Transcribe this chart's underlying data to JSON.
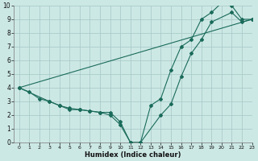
{
  "xlabel": "Humidex (Indice chaleur)",
  "bg_color": "#cce8e5",
  "grid_color": "#aaccca",
  "line_color": "#1a6b5a",
  "xlim": [
    -0.5,
    23
  ],
  "ylim": [
    0,
    10
  ],
  "xticks": [
    0,
    1,
    2,
    3,
    4,
    5,
    6,
    7,
    8,
    9,
    10,
    11,
    12,
    13,
    14,
    15,
    16,
    17,
    18,
    19,
    20,
    21,
    22,
    23
  ],
  "yticks": [
    0,
    1,
    2,
    3,
    4,
    5,
    6,
    7,
    8,
    9,
    10
  ],
  "line1_x": [
    0,
    1,
    2,
    3,
    4,
    5,
    6,
    7,
    8,
    9,
    10,
    11,
    12,
    13,
    14,
    15,
    16,
    17,
    18,
    19,
    20,
    21,
    22,
    23
  ],
  "line1_y": [
    4,
    3.7,
    3.2,
    3.0,
    2.7,
    2.5,
    2.4,
    2.3,
    2.2,
    2.2,
    1.5,
    0.0,
    0.0,
    2.7,
    3.2,
    5.3,
    7.0,
    7.5,
    9.0,
    9.5,
    10.2,
    10.0,
    9.0,
    9.0
  ],
  "line2_x": [
    0,
    3,
    4,
    5,
    6,
    7,
    8,
    9,
    10,
    11,
    12,
    14,
    15,
    16,
    17,
    18,
    19,
    21,
    22,
    23
  ],
  "line2_y": [
    4,
    3.0,
    2.7,
    2.4,
    2.4,
    2.3,
    2.2,
    2.0,
    1.3,
    0.0,
    0.0,
    2.0,
    2.8,
    4.8,
    6.5,
    7.5,
    8.8,
    9.5,
    8.8,
    9.0
  ],
  "line3_x": [
    0,
    23
  ],
  "line3_y": [
    4,
    9.0
  ]
}
